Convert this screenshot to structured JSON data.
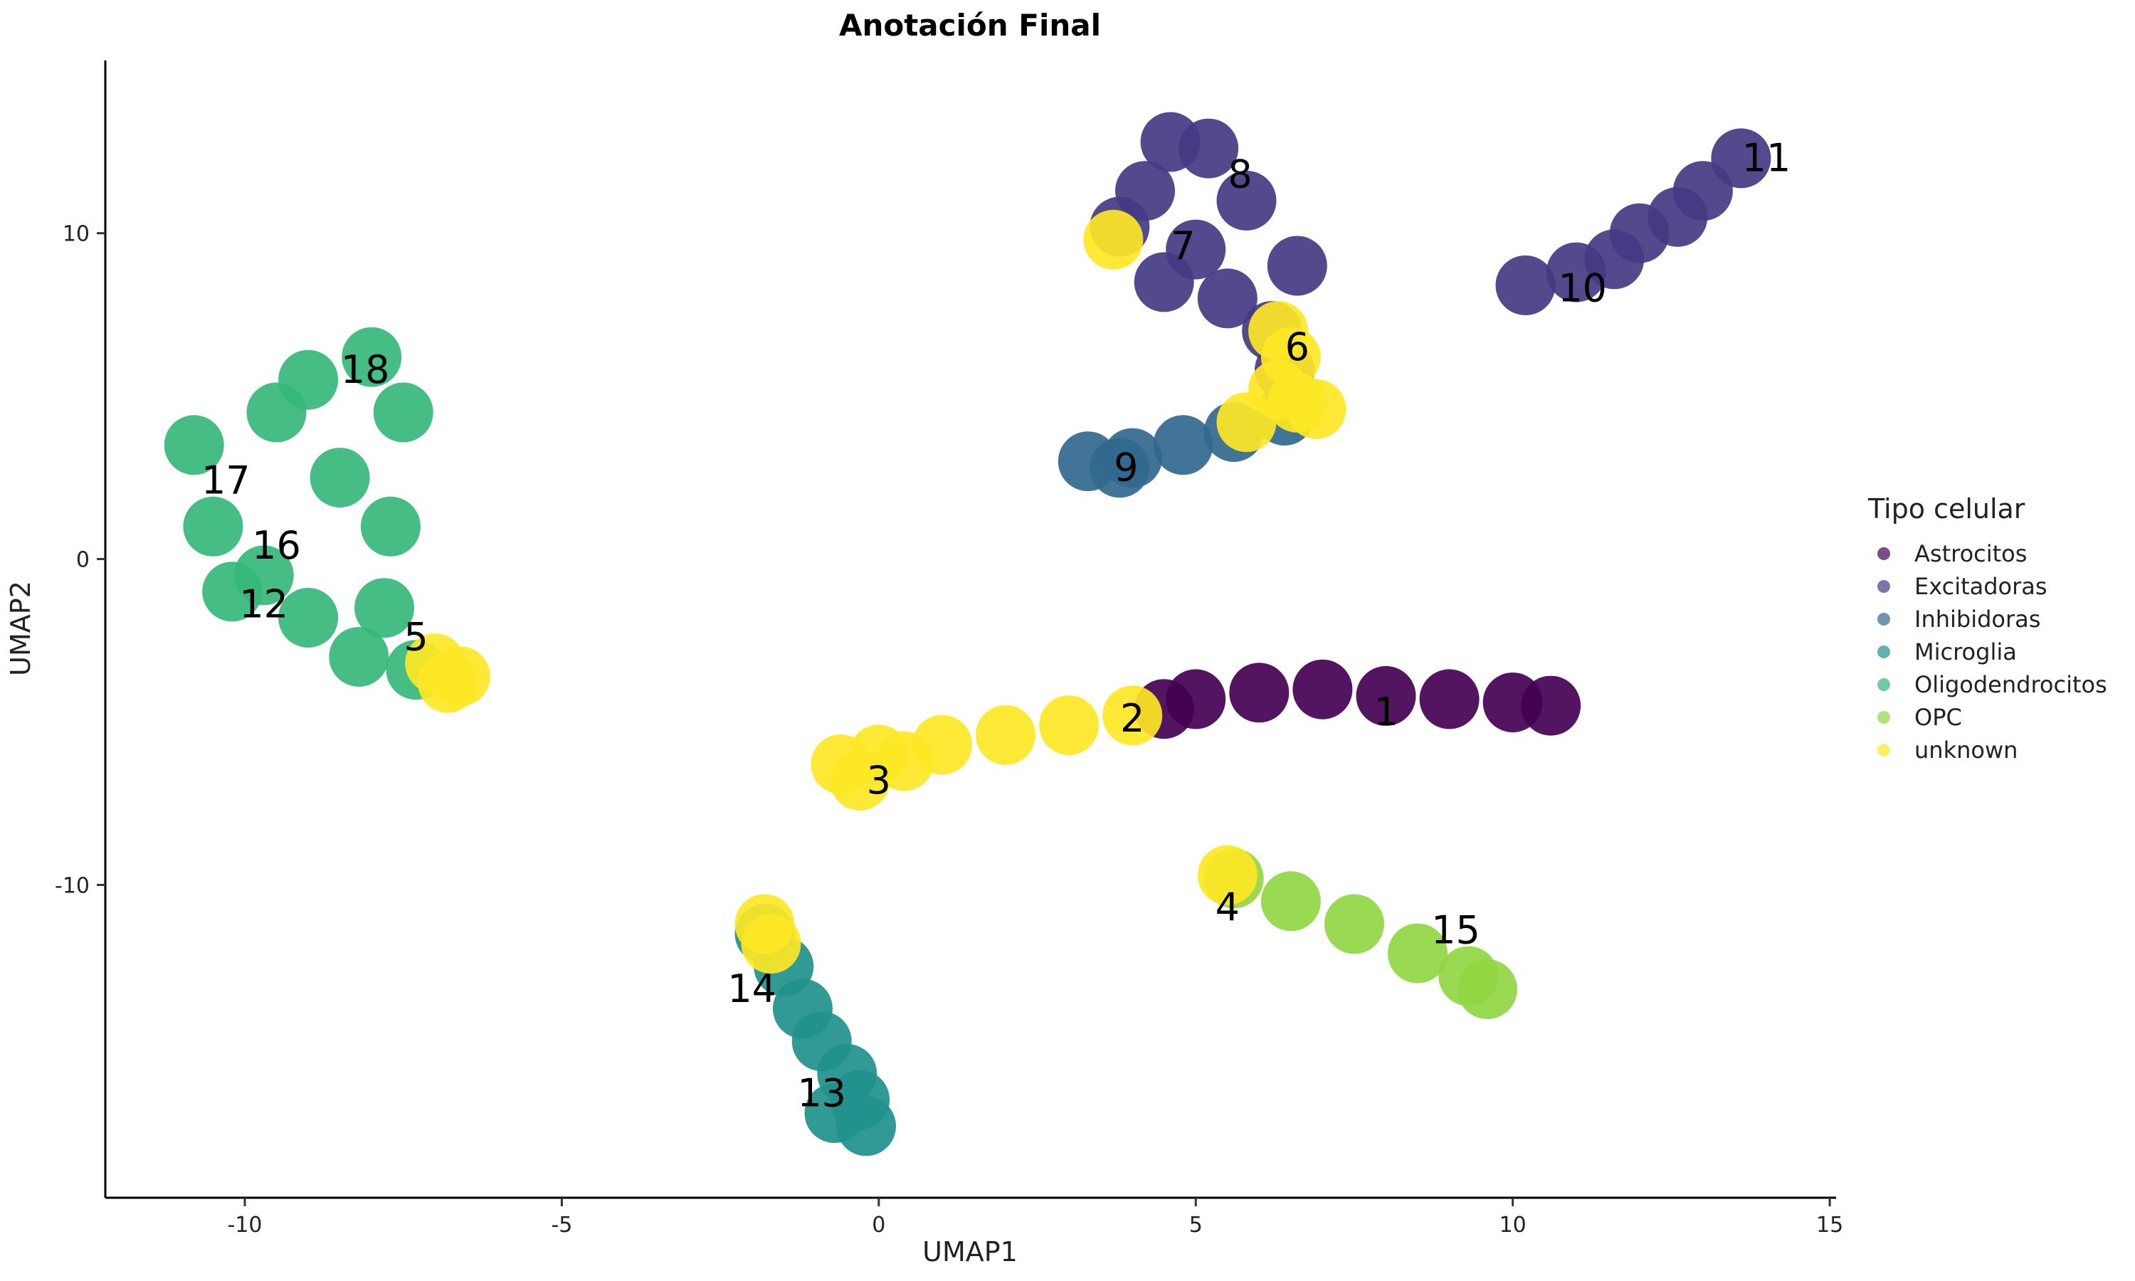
{
  "chart_data": {
    "type": "scatter",
    "title": "Anotación Final",
    "xlabel": "UMAP1",
    "ylabel": "UMAP2",
    "xlim": [
      -12.2,
      15.1
    ],
    "ylim": [
      -19.6,
      15.3
    ],
    "xticks": [
      -10,
      -5,
      0,
      5,
      10,
      15
    ],
    "yticks": [
      -10,
      0,
      10
    ],
    "grid": false,
    "legend": {
      "title": "Tipo celular",
      "placement": "right",
      "entries": [
        {
          "name": "Astrocitos",
          "color": "#440154"
        },
        {
          "name": "Excitadoras",
          "color": "#443983"
        },
        {
          "name": "Inhibidoras",
          "color": "#31688e"
        },
        {
          "name": "Microglia",
          "color": "#21918c"
        },
        {
          "name": "Oligodendrocitos",
          "color": "#35b779"
        },
        {
          "name": "OPC",
          "color": "#90d743"
        },
        {
          "name": "unknown",
          "color": "#fde725"
        }
      ]
    },
    "clusters": [
      {
        "series": "Astrocitos",
        "points": [
          [
            5.0,
            -4.3
          ],
          [
            6.0,
            -4.1
          ],
          [
            7.0,
            -4.0
          ],
          [
            8.0,
            -4.2
          ],
          [
            9.0,
            -4.3
          ],
          [
            10.0,
            -4.4
          ],
          [
            10.6,
            -4.5
          ],
          [
            4.5,
            -4.6
          ]
        ]
      },
      {
        "series": "unknown",
        "points": [
          [
            -0.6,
            -6.3
          ],
          [
            0.0,
            -6.0
          ],
          [
            1.0,
            -5.7
          ],
          [
            2.0,
            -5.4
          ],
          [
            3.0,
            -5.1
          ],
          [
            4.0,
            -4.8
          ],
          [
            -0.3,
            -6.8
          ],
          [
            0.4,
            -6.2
          ]
        ]
      },
      {
        "series": "Excitadoras",
        "points": [
          [
            3.8,
            10.2
          ],
          [
            4.2,
            11.3
          ],
          [
            4.6,
            12.8
          ],
          [
            5.2,
            12.6
          ],
          [
            5.8,
            11.0
          ],
          [
            5.0,
            9.5
          ],
          [
            4.5,
            8.5
          ],
          [
            5.5,
            8.0
          ],
          [
            6.2,
            7.0
          ],
          [
            6.6,
            9.0
          ],
          [
            6.4,
            5.8
          ]
        ]
      },
      {
        "series": "Excitadoras",
        "points": [
          [
            10.2,
            8.4
          ],
          [
            11.0,
            8.8
          ],
          [
            12.0,
            10.0
          ],
          [
            13.0,
            11.3
          ],
          [
            13.6,
            12.3
          ],
          [
            11.6,
            9.2
          ],
          [
            12.6,
            10.5
          ]
        ]
      },
      {
        "series": "Inhibidoras",
        "points": [
          [
            3.3,
            3.0
          ],
          [
            4.0,
            3.1
          ],
          [
            4.8,
            3.5
          ],
          [
            5.6,
            3.9
          ],
          [
            6.4,
            4.4
          ],
          [
            3.8,
            2.8
          ]
        ]
      },
      {
        "series": "unknown",
        "points": [
          [
            6.3,
            5.2
          ],
          [
            6.6,
            4.8
          ],
          [
            6.9,
            4.6
          ],
          [
            5.8,
            4.2
          ],
          [
            6.5,
            6.2
          ],
          [
            3.7,
            9.8
          ],
          [
            6.3,
            7.0
          ]
        ]
      },
      {
        "series": "Microglia",
        "points": [
          [
            -1.8,
            -11.5
          ],
          [
            -1.5,
            -12.5
          ],
          [
            -1.2,
            -13.8
          ],
          [
            -0.9,
            -14.8
          ],
          [
            -0.5,
            -15.8
          ],
          [
            -0.3,
            -16.6
          ],
          [
            -0.7,
            -17.0
          ],
          [
            -0.2,
            -17.4
          ]
        ]
      },
      {
        "series": "unknown",
        "points": [
          [
            -1.8,
            -11.2
          ],
          [
            -1.7,
            -11.8
          ]
        ]
      },
      {
        "series": "OPC",
        "points": [
          [
            5.6,
            -9.8
          ],
          [
            6.5,
            -10.5
          ],
          [
            7.5,
            -11.2
          ],
          [
            8.5,
            -12.1
          ],
          [
            9.3,
            -12.8
          ],
          [
            9.6,
            -13.2
          ]
        ]
      },
      {
        "series": "unknown",
        "points": [
          [
            5.5,
            -9.7
          ]
        ]
      },
      {
        "series": "Oligodendrocitos",
        "points": [
          [
            -10.8,
            3.5
          ],
          [
            -10.5,
            1.0
          ],
          [
            -9.7,
            -0.5
          ],
          [
            -9.0,
            5.5
          ],
          [
            -8.0,
            6.2
          ],
          [
            -7.5,
            4.5
          ],
          [
            -7.7,
            1.0
          ],
          [
            -7.8,
            -1.5
          ],
          [
            -9.0,
            -1.8
          ],
          [
            -8.2,
            -3.0
          ],
          [
            -7.3,
            -3.4
          ],
          [
            -9.5,
            4.5
          ],
          [
            -8.5,
            2.5
          ],
          [
            -10.2,
            -1.0
          ]
        ]
      },
      {
        "series": "unknown",
        "points": [
          [
            -7.0,
            -3.2
          ],
          [
            -6.6,
            -3.6
          ],
          [
            -6.8,
            -3.8
          ]
        ]
      }
    ],
    "annotations": [
      {
        "text": "1",
        "x": 8.0,
        "y": -4.7
      },
      {
        "text": "2",
        "x": 4.0,
        "y": -4.9
      },
      {
        "text": "3",
        "x": 0.0,
        "y": -6.8
      },
      {
        "text": "4",
        "x": 5.5,
        "y": -10.7
      },
      {
        "text": "5",
        "x": -7.3,
        "y": -2.4
      },
      {
        "text": "6",
        "x": 6.6,
        "y": 6.5
      },
      {
        "text": "7",
        "x": 4.8,
        "y": 9.6
      },
      {
        "text": "8",
        "x": 5.7,
        "y": 11.8
      },
      {
        "text": "9",
        "x": 3.9,
        "y": 2.8
      },
      {
        "text": "10",
        "x": 11.1,
        "y": 8.3
      },
      {
        "text": "11",
        "x": 14.0,
        "y": 12.3
      },
      {
        "text": "12",
        "x": -9.7,
        "y": -1.4
      },
      {
        "text": "13",
        "x": -0.9,
        "y": -16.4
      },
      {
        "text": "14",
        "x": -2.0,
        "y": -13.2
      },
      {
        "text": "15",
        "x": 9.1,
        "y": -11.4
      },
      {
        "text": "16",
        "x": -9.5,
        "y": 0.4
      },
      {
        "text": "17",
        "x": -10.3,
        "y": 2.4
      },
      {
        "text": "18",
        "x": -8.1,
        "y": 5.8
      }
    ]
  }
}
